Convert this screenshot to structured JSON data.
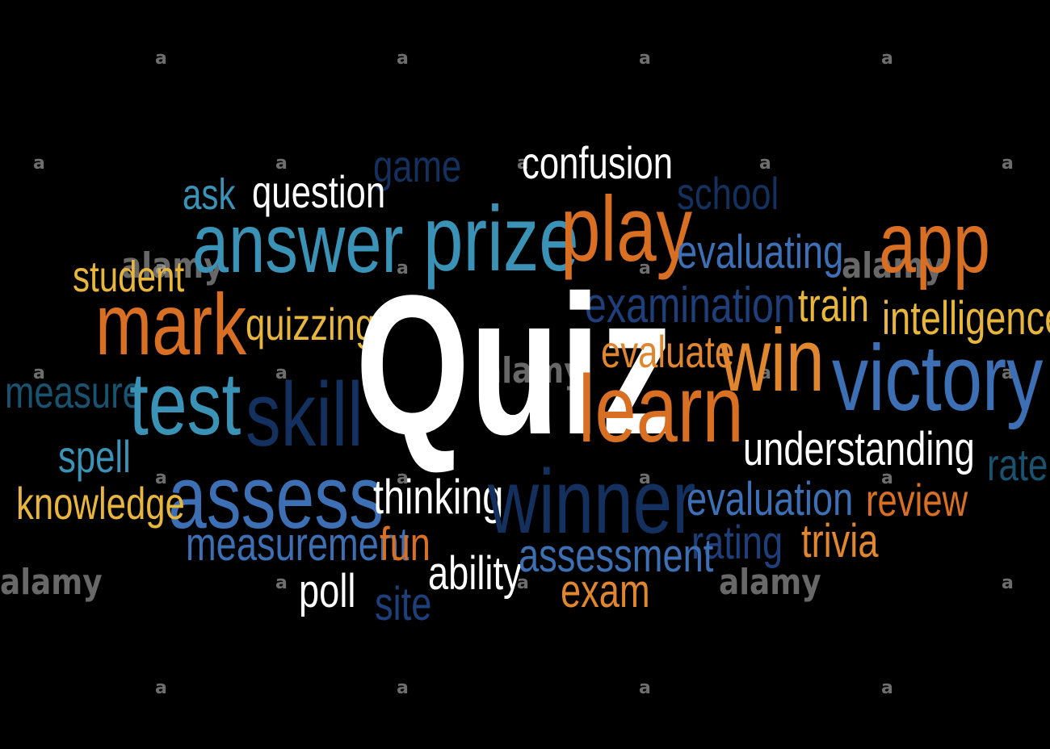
{
  "colors": {
    "background": "#000000",
    "white": "#ffffff",
    "light_blue": "#3a93b6",
    "blue": "#3d6fb4",
    "dark_blue": "#13305e",
    "navy": "#1e3f7a",
    "orange": "#d86f23",
    "light_orange": "#e0862e",
    "gold": "#e8b63c",
    "teal": "#1a5370",
    "watermark": "#c8c8c8"
  },
  "cloud": {
    "quiz": "Quiz",
    "confusion": "confusion",
    "game": "game",
    "ask": "ask",
    "question": "question",
    "school": "school",
    "answer": "answer",
    "prize": "prize",
    "play": "play",
    "app": "app",
    "evaluating": "evaluating",
    "student": "student",
    "mark": "mark",
    "quizzing": "quizzing",
    "examination": "examination",
    "train": "train",
    "intelligence": "intelligence",
    "evaluate": "evaluate",
    "win": "win",
    "victory": "victory",
    "measure": "measure",
    "test": "test",
    "skill": "skill",
    "learn": "learn",
    "understanding": "understanding",
    "spell": "spell",
    "rate": "rate",
    "assess": "assess",
    "knowledge": "knowledge",
    "thinking": "thinking",
    "winner": "winner",
    "evaluation": "evaluation",
    "review": "review",
    "measurement": "measurement",
    "fun": "fun",
    "rating": "rating",
    "trivia": "trivia",
    "ability": "ability",
    "assessment": "assessment",
    "poll": "poll",
    "exam": "exam",
    "site": "site"
  },
  "watermark": {
    "letter": "a",
    "brand": "alamy"
  }
}
